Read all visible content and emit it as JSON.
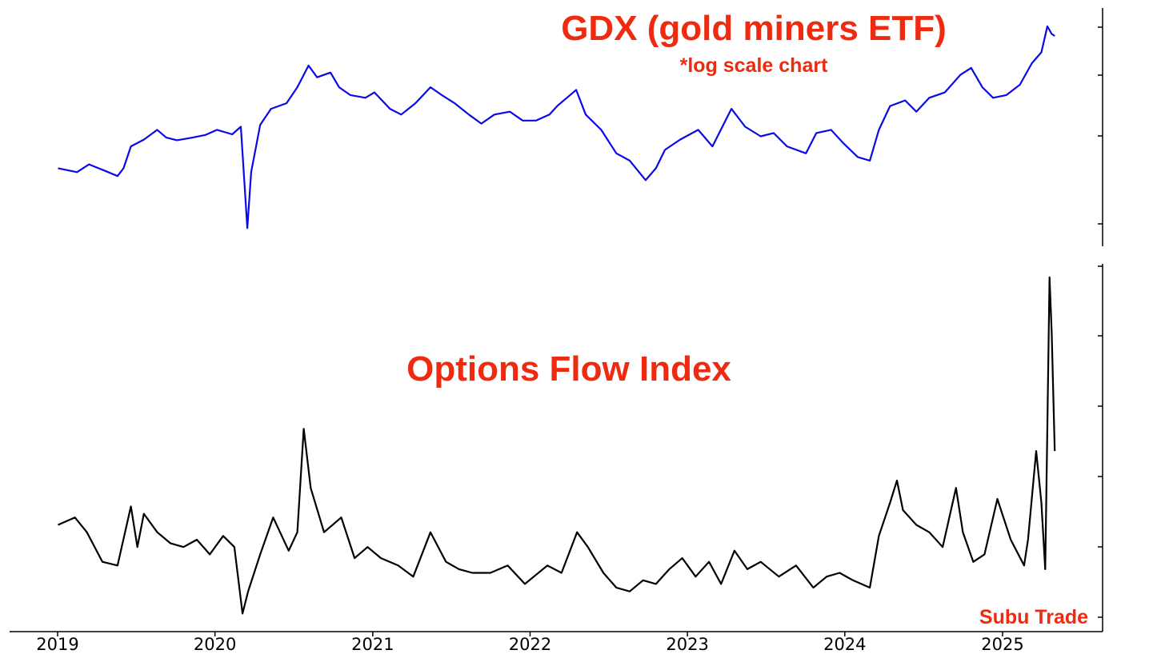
{
  "chart_data": [
    {
      "type": "line",
      "title": "GDX (gold miners ETF)",
      "subtitle": "*log scale chart",
      "yscale": "log",
      "ytick_labels_visible": false,
      "series": [
        {
          "color": "#0a0ae6",
          "x": [
            "2019-01-02",
            "2019-02-15",
            "2019-03-15",
            "2019-04-15",
            "2019-05-20",
            "2019-06-03",
            "2019-06-20",
            "2019-07-20",
            "2019-08-20",
            "2019-09-10",
            "2019-10-05",
            "2019-11-10",
            "2019-12-10",
            "2020-01-06",
            "2020-02-10",
            "2020-03-01",
            "2020-03-16",
            "2020-03-25",
            "2020-04-15",
            "2020-05-10",
            "2020-06-15",
            "2020-07-10",
            "2020-08-05",
            "2020-08-25",
            "2020-09-25",
            "2020-10-15",
            "2020-11-10",
            "2020-12-15",
            "2021-01-05",
            "2021-02-10",
            "2021-03-08",
            "2021-04-10",
            "2021-05-15",
            "2021-06-10",
            "2021-07-10",
            "2021-08-12",
            "2021-09-10",
            "2021-10-10",
            "2021-11-15",
            "2021-12-15",
            "2022-01-15",
            "2022-02-15",
            "2022-03-05",
            "2022-04-18",
            "2022-05-10",
            "2022-06-15",
            "2022-07-20",
            "2022-08-20",
            "2022-09-26",
            "2022-10-20",
            "2022-11-10",
            "2022-12-15",
            "2023-01-26",
            "2023-02-28",
            "2023-04-13",
            "2023-05-15",
            "2023-06-20",
            "2023-07-20",
            "2023-08-20",
            "2023-10-03",
            "2023-10-27",
            "2023-11-30",
            "2023-12-28",
            "2024-01-31",
            "2024-02-28",
            "2024-03-20",
            "2024-04-15",
            "2024-05-20",
            "2024-06-15",
            "2024-07-15",
            "2024-08-20",
            "2024-09-25",
            "2024-10-20",
            "2024-11-15",
            "2024-12-10",
            "2025-01-10",
            "2025-02-10",
            "2025-03-10",
            "2025-04-01",
            "2025-04-15",
            "2025-04-25",
            "2025-05-02"
          ],
          "values": [
            25.5,
            25.0,
            26.0,
            25.3,
            24.5,
            25.5,
            28.5,
            29.5,
            31.0,
            29.8,
            29.4,
            29.8,
            30.2,
            31.0,
            30.3,
            31.5,
            18.8,
            25.0,
            31.8,
            34.5,
            35.5,
            38.5,
            43.0,
            40.5,
            41.5,
            38.5,
            37.0,
            36.5,
            37.5,
            34.5,
            33.5,
            35.5,
            38.5,
            37.0,
            35.5,
            33.5,
            32.0,
            33.5,
            34.0,
            32.5,
            32.5,
            33.5,
            35.0,
            38.0,
            33.5,
            31.0,
            27.5,
            26.5,
            24.0,
            25.5,
            28.0,
            29.5,
            31.0,
            28.5,
            34.5,
            31.5,
            30.0,
            30.5,
            28.5,
            27.5,
            30.5,
            31.0,
            29.0,
            27.0,
            26.5,
            31.0,
            35.0,
            36.0,
            34.0,
            36.5,
            37.5,
            41.0,
            42.5,
            38.5,
            36.5,
            37.0,
            39.0,
            43.5,
            46.0,
            52.5,
            50.5,
            50.0
          ]
        }
      ]
    },
    {
      "type": "line",
      "title": "Options Flow Index",
      "ytick_labels_visible": false,
      "xtick_labels": [
        "2019",
        "2020",
        "2021",
        "2022",
        "2023",
        "2024",
        "2025"
      ],
      "series": [
        {
          "color": "#000000",
          "x": [
            "2019-01-02",
            "2019-02-10",
            "2019-03-10",
            "2019-04-15",
            "2019-05-20",
            "2019-06-20",
            "2019-07-05",
            "2019-07-20",
            "2019-08-20",
            "2019-09-20",
            "2019-10-20",
            "2019-11-20",
            "2019-12-20",
            "2020-01-20",
            "2020-02-15",
            "2020-03-05",
            "2020-03-18",
            "2020-04-15",
            "2020-05-15",
            "2020-06-20",
            "2020-07-10",
            "2020-07-25",
            "2020-08-10",
            "2020-09-10",
            "2020-10-20",
            "2020-11-20",
            "2020-12-20",
            "2021-01-20",
            "2021-03-01",
            "2021-04-05",
            "2021-05-15",
            "2021-06-20",
            "2021-07-20",
            "2021-08-20",
            "2021-10-01",
            "2021-11-10",
            "2021-12-20",
            "2022-02-10",
            "2022-03-15",
            "2022-04-20",
            "2022-05-15",
            "2022-06-20",
            "2022-07-20",
            "2022-08-20",
            "2022-09-20",
            "2022-10-20",
            "2022-11-20",
            "2022-12-20",
            "2023-01-20",
            "2023-02-20",
            "2023-03-20",
            "2023-04-20",
            "2023-05-20",
            "2023-06-20",
            "2023-08-01",
            "2023-09-10",
            "2023-10-20",
            "2023-11-20",
            "2023-12-20",
            "2024-01-20",
            "2024-02-28",
            "2024-03-20",
            "2024-04-15",
            "2024-05-01",
            "2024-05-15",
            "2024-06-15",
            "2024-07-15",
            "2024-08-15",
            "2024-09-15",
            "2024-10-01",
            "2024-10-25",
            "2024-11-20",
            "2024-12-20",
            "2025-01-20",
            "2025-02-20",
            "2025-03-01",
            "2025-03-20",
            "2025-04-01",
            "2025-04-10",
            "2025-04-15",
            "2025-04-20",
            "2025-04-25",
            "2025-05-02"
          ],
          "values": [
            20,
            22,
            18,
            10,
            9,
            25,
            14,
            23,
            18,
            15,
            14,
            16,
            12,
            17,
            14,
            -4,
            2,
            12,
            22,
            13,
            18,
            46,
            30,
            18,
            22,
            11,
            14,
            11,
            9,
            6,
            18,
            10,
            8,
            7,
            7,
            9,
            4,
            9,
            7,
            18,
            14,
            7,
            3,
            2,
            5,
            4,
            8,
            11,
            6,
            10,
            4,
            13,
            8,
            10,
            6,
            9,
            3,
            6,
            7,
            5,
            3,
            17,
            26,
            32,
            24,
            20,
            18,
            14,
            30,
            18,
            10,
            12,
            27,
            16,
            9,
            16,
            40,
            26,
            8,
            47,
            87,
            72,
            40
          ]
        }
      ]
    }
  ],
  "watermark": "Subu Trade"
}
